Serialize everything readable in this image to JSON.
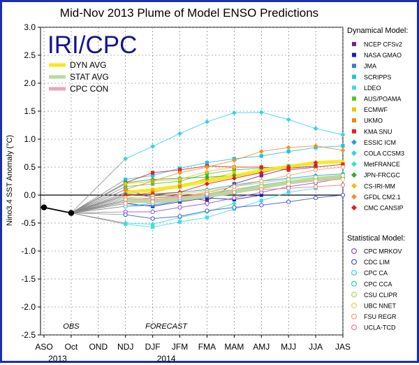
{
  "chart_data": {
    "type": "line",
    "title": "Mid-Nov 2013 Plume of Model ENSO Predictions",
    "logo_text": "IRI/CPC",
    "ylabel": "Nino3.4 SST Anomaly (°C)",
    "ylim": [
      -2.5,
      3.0
    ],
    "yticks": [
      -2.5,
      -2.0,
      -1.5,
      -1.0,
      -0.5,
      0.0,
      0.5,
      1.0,
      1.5,
      2.0,
      2.5,
      3.0
    ],
    "ytick_labels": [
      "-2.5",
      "-2.0",
      "-1.5",
      "-1.0",
      "-0.5",
      "0.0",
      "0.5",
      "1.0",
      "1.5",
      "2.0",
      "2.5",
      "3.0"
    ],
    "categories": [
      "ASO",
      "Oct",
      "OND",
      "NDJ",
      "DJF",
      "JFM",
      "FMA",
      "MAM",
      "AMJ",
      "MJJ",
      "JJA",
      "JAS"
    ],
    "x_sublabels": [
      {
        "text": "2013",
        "at": 0.5
      },
      {
        "text": "2014",
        "at": 4.5
      }
    ],
    "annotations": [
      {
        "text": "OBS",
        "at": 1
      },
      {
        "text": "FORECAST",
        "at": 4.5
      }
    ],
    "obs": {
      "name": "OBS",
      "values": [
        -0.22,
        -0.32
      ],
      "color": "#000000"
    },
    "averages": [
      {
        "name": "DYN AVG",
        "color": "#f4e81c",
        "values": [
          null,
          null,
          null,
          0.05,
          0.09,
          0.16,
          0.25,
          0.34,
          0.44,
          0.51,
          0.58,
          0.6
        ]
      },
      {
        "name": "STAT AVG",
        "color": "#b7dc9e",
        "values": [
          null,
          null,
          null,
          -0.1,
          -0.12,
          -0.08,
          -0.02,
          0.05,
          0.14,
          0.22,
          0.29,
          0.34
        ]
      },
      {
        "name": "CPC CON",
        "color": "#e8a8b4",
        "values": [
          null,
          null,
          null,
          -0.08,
          -0.1,
          -0.06,
          -0.01,
          0.06,
          0.14,
          0.22,
          0.28,
          0.32
        ]
      }
    ],
    "legend_dyn_title": "Dynamical Model:",
    "legend_stat_title": "Statistical Model:",
    "series": [
      {
        "name": "NCEP CFSv2",
        "group": "dynamical",
        "marker": "square",
        "color": "#7b1f8a",
        "values": [
          null,
          null,
          null,
          0.1,
          -0.05,
          -0.02,
          -0.1,
          0.2,
          0.35,
          0.48,
          0.52,
          null
        ]
      },
      {
        "name": "NASA GMAO",
        "group": "dynamical",
        "marker": "square",
        "color": "#1a1acc",
        "values": [
          null,
          null,
          null,
          -0.15,
          -0.2,
          -0.12,
          -0.05,
          -0.08,
          0.0,
          null,
          null,
          null
        ]
      },
      {
        "name": "JMA",
        "group": "dynamical",
        "marker": "square",
        "color": "#3a7ad8",
        "values": [
          null,
          null,
          null,
          -0.2,
          -0.18,
          -0.1,
          -0.02,
          0.05,
          0.12,
          null,
          null,
          null
        ]
      },
      {
        "name": "SCRIPPS",
        "group": "dynamical",
        "marker": "square",
        "color": "#20c2e0",
        "values": [
          null,
          null,
          null,
          0.28,
          0.35,
          0.48,
          0.58,
          0.65,
          0.7,
          0.78,
          0.85,
          0.88
        ]
      },
      {
        "name": "LDEO",
        "group": "dynamical",
        "marker": "square",
        "color": "#40dce8",
        "values": [
          null,
          null,
          null,
          -0.52,
          -0.57,
          -0.48,
          -0.4,
          -0.25,
          -0.1,
          0.05,
          0.12,
          null
        ]
      },
      {
        "name": "AUS/POAMA",
        "group": "dynamical",
        "marker": "square",
        "color": "#4cc830",
        "values": [
          null,
          null,
          null,
          0.15,
          0.2,
          0.25,
          0.38,
          0.45,
          0.48,
          0.52,
          null,
          null
        ]
      },
      {
        "name": "ECMWF",
        "group": "dynamical",
        "marker": "square",
        "color": "#f4c000",
        "values": [
          null,
          null,
          null,
          0.05,
          0.1,
          0.18,
          0.28,
          0.4,
          null,
          null,
          null,
          null
        ]
      },
      {
        "name": "UKMO",
        "group": "dynamical",
        "marker": "square",
        "color": "#f08800",
        "values": [
          null,
          null,
          null,
          -0.02,
          0.05,
          0.15,
          0.3,
          null,
          null,
          null,
          null,
          null
        ]
      },
      {
        "name": "KMA SNU",
        "group": "dynamical",
        "marker": "square",
        "color": "#e02020",
        "values": [
          null,
          null,
          null,
          0.22,
          0.4,
          0.45,
          0.52,
          0.5,
          0.5,
          0.45,
          0.5,
          0.55
        ]
      },
      {
        "name": "ESSIC ICM",
        "group": "dynamical",
        "marker": "diamond",
        "color": "#2aa0d0",
        "values": [
          null,
          null,
          null,
          0.02,
          0.0,
          0.05,
          0.1,
          0.18,
          0.25,
          0.3,
          0.35,
          0.38
        ]
      },
      {
        "name": "COLA CCSM3",
        "group": "dynamical",
        "marker": "diamond",
        "color": "#30d4ec",
        "values": [
          null,
          null,
          null,
          0.65,
          0.87,
          1.1,
          1.31,
          1.47,
          1.48,
          1.35,
          1.19,
          1.08
        ]
      },
      {
        "name": "MetFRANCE",
        "group": "dynamical",
        "marker": "diamond",
        "color": "#30e8c8",
        "values": [
          null,
          null,
          null,
          -0.5,
          -0.52,
          -0.4,
          -0.3,
          -0.15,
          null,
          null,
          null,
          null
        ]
      },
      {
        "name": "JPN-FRCGC",
        "group": "dynamical",
        "marker": "diamond",
        "color": "#30b020",
        "values": [
          null,
          null,
          null,
          0.22,
          0.28,
          0.3,
          0.32,
          0.35,
          0.4,
          null,
          null,
          null
        ]
      },
      {
        "name": "CS-IRI-MM",
        "group": "dynamical",
        "marker": "diamond",
        "color": "#f0c020",
        "values": [
          null,
          null,
          null,
          0.2,
          0.25,
          0.28,
          0.42,
          0.5,
          null,
          null,
          null,
          null
        ]
      },
      {
        "name": "GFDL CM2.1",
        "group": "dynamical",
        "marker": "diamond",
        "color": "#f09030",
        "values": [
          null,
          null,
          null,
          0.1,
          0.25,
          0.4,
          0.5,
          0.62,
          0.78,
          0.85,
          0.88,
          0.8
        ]
      },
      {
        "name": "CMC CANSIP",
        "group": "dynamical",
        "marker": "diamond",
        "color": "#e02020",
        "values": [
          null,
          null,
          null,
          0.0,
          0.02,
          0.05,
          0.2,
          0.3,
          0.4,
          0.5,
          0.58,
          null
        ]
      },
      {
        "name": "CPC MRKOV",
        "group": "statistical",
        "marker": "circle",
        "color": "#9050c0",
        "values": [
          null,
          null,
          null,
          -0.3,
          -0.3,
          -0.22,
          -0.15,
          -0.05,
          0.05,
          0.15,
          0.22,
          0.3
        ]
      },
      {
        "name": "CDC LIM",
        "group": "statistical",
        "marker": "circle",
        "color": "#4050d0",
        "values": [
          null,
          null,
          null,
          -0.35,
          -0.42,
          -0.38,
          -0.28,
          -0.22,
          -0.18,
          -0.12,
          -0.05,
          0.0
        ]
      },
      {
        "name": "CPC CA",
        "group": "statistical",
        "marker": "circle",
        "color": "#40c8e0",
        "values": [
          null,
          null,
          null,
          -0.2,
          -0.15,
          -0.08,
          0.0,
          0.08,
          0.15,
          0.22,
          0.3,
          0.35
        ]
      },
      {
        "name": "CPC CCA",
        "group": "statistical",
        "marker": "circle",
        "color": "#30d0a0",
        "values": [
          null,
          null,
          null,
          -0.12,
          -0.1,
          -0.05,
          0.02,
          0.1,
          0.18,
          0.25,
          0.3,
          0.35
        ]
      },
      {
        "name": "CSU CLIPR",
        "group": "statistical",
        "marker": "circle",
        "color": "#a8d860",
        "values": [
          null,
          null,
          null,
          -0.05,
          -0.02,
          0.02,
          0.08,
          0.15,
          0.22,
          0.28,
          0.32,
          0.35
        ]
      },
      {
        "name": "UBC NNET",
        "group": "statistical",
        "marker": "circle",
        "color": "#e8d060",
        "values": [
          null,
          null,
          null,
          -0.1,
          -0.05,
          0.0,
          0.05,
          0.1,
          0.15,
          0.2,
          0.25,
          0.28
        ]
      },
      {
        "name": "FSU REGR",
        "group": "statistical",
        "marker": "circle",
        "color": "#f0a070",
        "values": [
          null,
          null,
          null,
          -0.15,
          -0.12,
          -0.05,
          0.05,
          0.15,
          0.25,
          0.35,
          0.45,
          0.5
        ]
      },
      {
        "name": "UCLA-TCD",
        "group": "statistical",
        "marker": "circle",
        "color": "#f07878",
        "values": [
          null,
          null,
          null,
          -0.08,
          -0.05,
          -0.02,
          0.02,
          0.05,
          0.1,
          0.12,
          0.15,
          0.18
        ]
      }
    ]
  }
}
